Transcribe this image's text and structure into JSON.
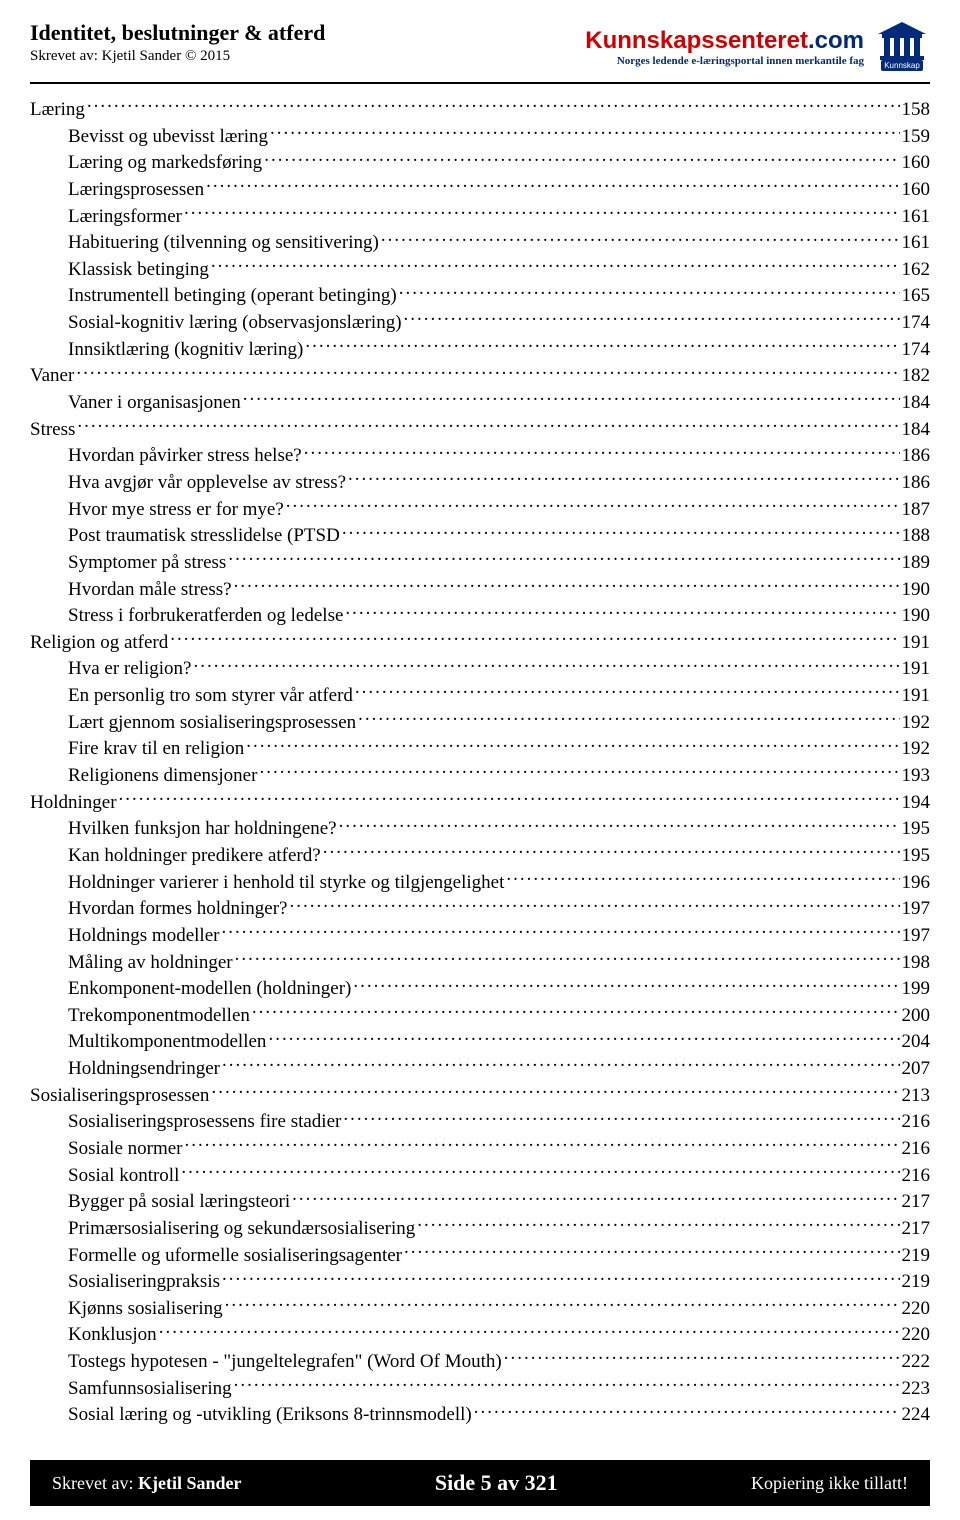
{
  "header": {
    "title": "Identitet, beslutninger & atferd",
    "author": "Skrevet av: Kjetil Sander © 2015",
    "brand_red": "Kunnskapssenteret",
    "brand_blue": ".com",
    "tagline": "Norges ledende e-læringsportal innen merkantile fag",
    "logo_text": "Kunnskap"
  },
  "toc": [
    {
      "level": 0,
      "title": "Læring",
      "page": "158"
    },
    {
      "level": 1,
      "title": "Bevisst og ubevisst læring",
      "page": "159"
    },
    {
      "level": 1,
      "title": "Læring og markedsføring",
      "page": "160"
    },
    {
      "level": 1,
      "title": "Læringsprosessen",
      "page": "160"
    },
    {
      "level": 1,
      "title": "Læringsformer",
      "page": " 161"
    },
    {
      "level": 1,
      "title": "Habituering (tilvenning og sensitivering)",
      "page": " 161"
    },
    {
      "level": 1,
      "title": "Klassisk betinging",
      "page": "162"
    },
    {
      "level": 1,
      "title": "Instrumentell betinging (operant betinging)",
      "page": "165"
    },
    {
      "level": 1,
      "title": "Sosial-kognitiv læring (observasjonslæring)",
      "page": " 174"
    },
    {
      "level": 1,
      "title": "Innsiktlæring (kognitiv læring)",
      "page": " 174"
    },
    {
      "level": 0,
      "title": "Vaner",
      "page": "182"
    },
    {
      "level": 1,
      "title": "Vaner i organisasjonen",
      "page": "184"
    },
    {
      "level": 0,
      "title": "Stress",
      "page": "184"
    },
    {
      "level": 1,
      "title": "Hvordan påvirker stress helse?",
      "page": "186"
    },
    {
      "level": 1,
      "title": "Hva avgjør vår opplevelse av stress?",
      "page": "186"
    },
    {
      "level": 1,
      "title": "Hvor mye stress er for mye? ",
      "page": "187"
    },
    {
      "level": 1,
      "title": "Post traumatisk stresslidelse (PTSD",
      "page": "188"
    },
    {
      "level": 1,
      "title": "Symptomer på stress",
      "page": "189"
    },
    {
      "level": 1,
      "title": "Hvordan måle stress?",
      "page": "190"
    },
    {
      "level": 1,
      "title": "Stress i forbrukeratferden og ledelse",
      "page": "190"
    },
    {
      "level": 0,
      "title": "Religion og atferd",
      "page": " 191"
    },
    {
      "level": 1,
      "title": "Hva er religion?",
      "page": " 191"
    },
    {
      "level": 1,
      "title": "En personlig tro som styrer vår atferd",
      "page": " 191"
    },
    {
      "level": 1,
      "title": "Lært gjennom sosialiseringsprosessen",
      "page": "192"
    },
    {
      "level": 1,
      "title": "Fire krav til en religion",
      "page": "192"
    },
    {
      "level": 1,
      "title": "Religionens dimensjoner",
      "page": "193"
    },
    {
      "level": 0,
      "title": "Holdninger",
      "page": "194"
    },
    {
      "level": 1,
      "title": "Hvilken funksjon har holdningene? ",
      "page": "195"
    },
    {
      "level": 1,
      "title": "Kan holdninger predikere atferd?",
      "page": "195"
    },
    {
      "level": 1,
      "title": "Holdninger varierer i henhold til styrke og tilgjengelighet",
      "page": "196"
    },
    {
      "level": 1,
      "title": "Hvordan formes holdninger?",
      "page": "197"
    },
    {
      "level": 1,
      "title": "Holdnings modeller",
      "page": "197"
    },
    {
      "level": 1,
      "title": "Måling av holdninger",
      "page": "198"
    },
    {
      "level": 1,
      "title": "Enkomponent-modellen (holdninger)",
      "page": "199"
    },
    {
      "level": 1,
      "title": "Trekomponentmodellen",
      "page": " 200"
    },
    {
      "level": 1,
      "title": "Multikomponentmodellen",
      "page": " 204"
    },
    {
      "level": 1,
      "title": "Holdningsendringer",
      "page": " 207"
    },
    {
      "level": 0,
      "title": "Sosialiseringsprosessen",
      "page": "213"
    },
    {
      "level": 1,
      "title": "Sosialiseringsprosessens fire stadier",
      "page": "216"
    },
    {
      "level": 1,
      "title": "Sosiale normer",
      "page": "216"
    },
    {
      "level": 1,
      "title": "Sosial kontroll",
      "page": "216"
    },
    {
      "level": 1,
      "title": "Bygger på sosial læringsteori",
      "page": " 217"
    },
    {
      "level": 1,
      "title": "Primærsosialisering og sekundærsosialisering",
      "page": " 217"
    },
    {
      "level": 1,
      "title": "Formelle og uformelle sosialiseringsagenter",
      "page": "219"
    },
    {
      "level": 1,
      "title": "Sosialiseringpraksis",
      "page": "219"
    },
    {
      "level": 1,
      "title": "Kjønns sosialisering",
      "page": " 220"
    },
    {
      "level": 1,
      "title": "Konklusjon",
      "page": " 220"
    },
    {
      "level": 1,
      "title": "Tostegs hypotesen - \"jungeltelegrafen\" (Word Of Mouth)",
      "page": " 222"
    },
    {
      "level": 1,
      "title": "Samfunnsosialisering",
      "page": " 223"
    },
    {
      "level": 1,
      "title": "Sosial læring og -utvikling (Eriksons 8-trinnsmodell)",
      "page": " 224"
    }
  ],
  "footer": {
    "left_prefix": "Skrevet av: ",
    "left_author": "Kjetil Sander",
    "center": "Side 5 av 321",
    "right": "Kopiering ikke tillatt!"
  },
  "colors": {
    "brand_red": "#d00000",
    "brand_blue": "#002a7a",
    "text": "#000000",
    "footer_bg": "#000000",
    "footer_text": "#ffffff"
  },
  "typography": {
    "body_fontsize": 19,
    "header_title_fontsize": 22,
    "footer_center_fontsize": 22
  }
}
